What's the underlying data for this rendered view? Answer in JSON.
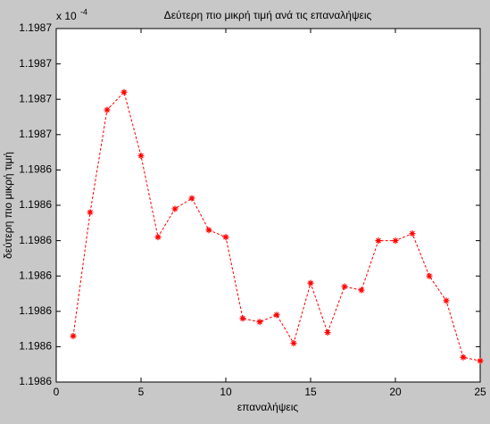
{
  "chart_data": {
    "type": "line",
    "title": "Δεύτερη πιο μικρή τιμή ανά τις επαναλήψεις",
    "xlabel": "επαναλήψεις",
    "ylabel": "δεύτερη πιο μικρή τιμή",
    "y_multiplier": "x 10",
    "y_multiplier_exponent": "-4",
    "x": [
      1,
      2,
      3,
      4,
      5,
      6,
      7,
      8,
      9,
      10,
      11,
      12,
      13,
      14,
      15,
      16,
      17,
      18,
      19,
      20,
      21,
      22,
      23,
      24,
      25
    ],
    "series": [
      {
        "name": "δεύτερη πιο μικρή τιμή",
        "color": "#ff0000",
        "values": [
          1.1986443,
          1.1986478,
          1.1986507,
          1.1986512,
          1.1986494,
          1.1986471,
          1.1986479,
          1.1986482,
          1.1986473,
          1.1986471,
          1.1986448,
          1.1986447,
          1.1986449,
          1.1986441,
          1.1986458,
          1.1986444,
          1.1986457,
          1.1986456,
          1.198647,
          1.198647,
          1.1986472,
          1.198646,
          1.1986453,
          1.1986437,
          1.1986436
        ]
      }
    ],
    "xlim": [
      0,
      25
    ],
    "xticks": [
      0,
      5,
      10,
      15,
      20,
      25
    ],
    "ylim": [
      1.198643,
      1.198653
    ],
    "yticks": [
      {
        "value": 1.198643,
        "label": "1.1986"
      },
      {
        "value": 1.198644,
        "label": "1.1986"
      },
      {
        "value": 1.198645,
        "label": "1.1986"
      },
      {
        "value": 1.198646,
        "label": "1.1986"
      },
      {
        "value": 1.198647,
        "label": "1.1986"
      },
      {
        "value": 1.198648,
        "label": "1.1986"
      },
      {
        "value": 1.198649,
        "label": "1.1986"
      },
      {
        "value": 1.19865,
        "label": "1.1987"
      },
      {
        "value": 1.198651,
        "label": "1.1987"
      },
      {
        "value": 1.198652,
        "label": "1.1987"
      },
      {
        "value": 1.198653,
        "label": "1.1987"
      }
    ],
    "grid": false
  }
}
